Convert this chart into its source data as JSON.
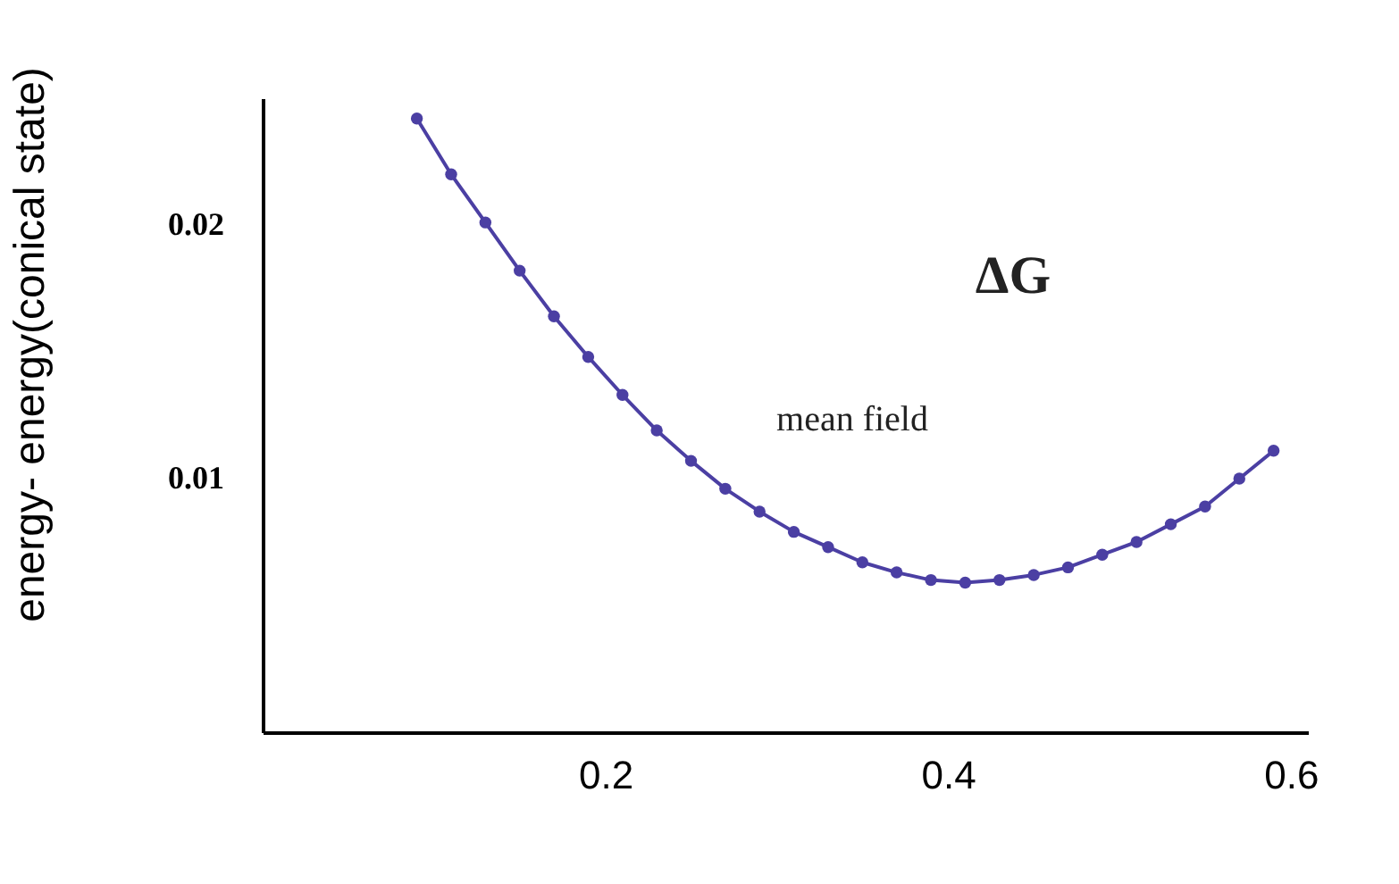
{
  "chart_data": {
    "type": "line",
    "ylabel": "energy- energy(conical state)",
    "x": [
      0.09,
      0.11,
      0.13,
      0.15,
      0.17,
      0.19,
      0.21,
      0.23,
      0.25,
      0.27,
      0.29,
      0.31,
      0.33,
      0.35,
      0.37,
      0.39,
      0.41,
      0.43,
      0.45,
      0.47,
      0.49,
      0.51,
      0.53,
      0.55,
      0.57,
      0.59
    ],
    "series": [
      {
        "color": "#4b3fa3",
        "values": [
          0.0242,
          0.022,
          0.0201,
          0.0182,
          0.0164,
          0.0148,
          0.0133,
          0.0119,
          0.0107,
          0.0096,
          0.0087,
          0.0079,
          0.0073,
          0.0067,
          0.0063,
          0.006,
          0.0059,
          0.006,
          0.0062,
          0.0065,
          0.007,
          0.0075,
          0.0082,
          0.0089,
          0.01,
          0.0111
        ]
      }
    ],
    "xlim": [
      0,
      0.61
    ],
    "ylim": [
      0,
      0.025
    ],
    "xticks": [
      0.2,
      0.4,
      0.6
    ],
    "yticks": [
      0.01,
      0.02
    ],
    "grid": false,
    "legend": false,
    "marker": "circle",
    "line_style": "solid",
    "annotations": [
      "ΔG",
      "mean field"
    ]
  }
}
